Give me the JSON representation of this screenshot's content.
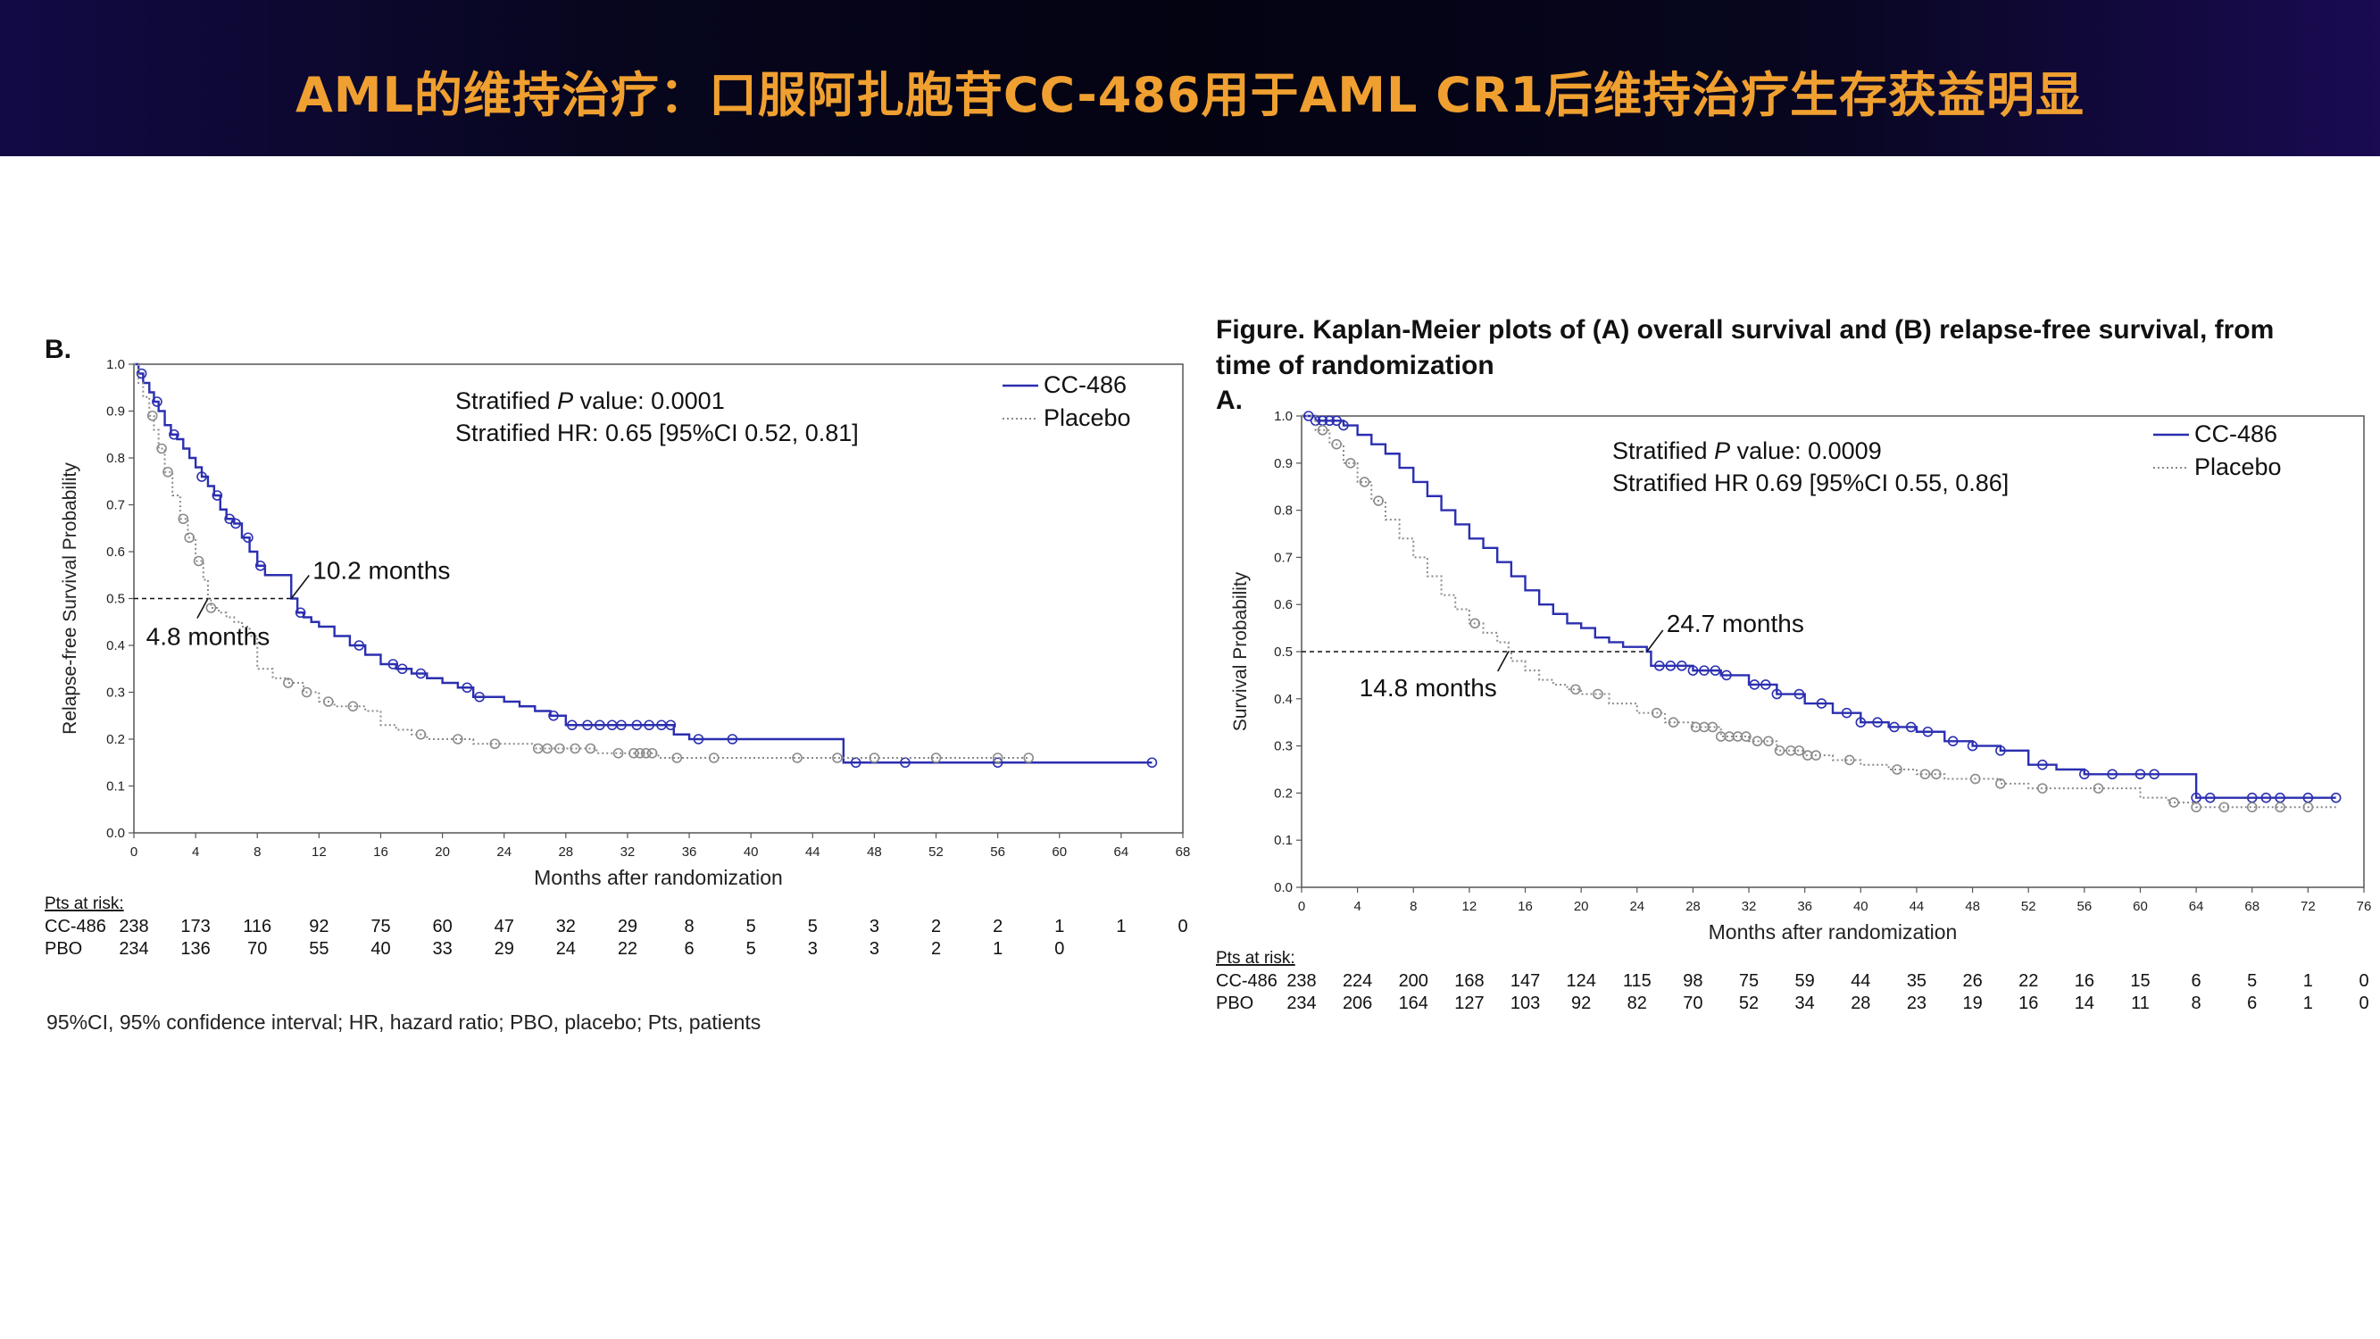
{
  "header": {
    "title": "AML的维持治疗：口服阿扎胞苷CC-486用于AML CR1后维持治疗生存获益明显"
  },
  "left_panel": {
    "label": "B."
  },
  "right_panel": {
    "caption": "Figure. Kaplan-Meier plots of (A) overall survival and (B) relapse-free survival, from time of randomization",
    "label": "A."
  },
  "footnote": "95%CI, 95% confidence interval; HR, hazard ratio; PBO, placebo; Pts, patients",
  "chart_data": [
    {
      "type": "line",
      "ylabel": "Relapse-free Survival Probability",
      "xlabel": "Months after randomization",
      "xlim": [
        0,
        68
      ],
      "ylim": [
        0,
        1
      ],
      "xticks": [
        0,
        4,
        8,
        12,
        16,
        20,
        24,
        28,
        32,
        36,
        40,
        44,
        48,
        52,
        56,
        60,
        64,
        68
      ],
      "yticks": [
        "0.0",
        "0.1",
        "0.2",
        "0.3",
        "0.4",
        "0.5",
        "0.6",
        "0.7",
        "0.8",
        "0.9",
        "1.0"
      ],
      "stats_p_prefix": "Stratified ",
      "stats_p_italic": "P",
      "stats_p_rest": " value: 0.0001",
      "stats_hr": "Stratified HR: 0.65 [95%CI 0.52, 0.81]",
      "medians": [
        {
          "label": "10.2 months",
          "x": 10.2,
          "y": 0.5
        },
        {
          "label": "4.8 months",
          "x": 4.8,
          "y": 0.5
        }
      ],
      "risk_title": "Pts at risk:",
      "risk_times": [
        0,
        4,
        8,
        12,
        16,
        20,
        24,
        28,
        32,
        36,
        40,
        44,
        48,
        52,
        56,
        60,
        64,
        68
      ],
      "series": [
        {
          "name": "CC-486",
          "color": "#2b2fb0",
          "style": "solid",
          "x": [
            0,
            0.3,
            0.6,
            1,
            1.3,
            1.6,
            2,
            2.4,
            2.8,
            3.2,
            3.6,
            4,
            4.4,
            4.8,
            5.2,
            5.6,
            6,
            6.5,
            7,
            7.5,
            8,
            8.5,
            9,
            9.5,
            10.2,
            10.6,
            11,
            11.5,
            12,
            13,
            14,
            15,
            16,
            17,
            18,
            19,
            20,
            21,
            22,
            23,
            24,
            25,
            26,
            27,
            28,
            30,
            32,
            34,
            35,
            36,
            38,
            40,
            42,
            44,
            45,
            46,
            48,
            50,
            52,
            54,
            56,
            58,
            60,
            62,
            64,
            66
          ],
          "y": [
            1,
            0.98,
            0.96,
            0.94,
            0.92,
            0.9,
            0.87,
            0.85,
            0.84,
            0.82,
            0.8,
            0.78,
            0.76,
            0.74,
            0.72,
            0.69,
            0.67,
            0.66,
            0.63,
            0.6,
            0.57,
            0.55,
            0.55,
            0.55,
            0.5,
            0.47,
            0.46,
            0.45,
            0.44,
            0.42,
            0.4,
            0.38,
            0.36,
            0.35,
            0.34,
            0.33,
            0.32,
            0.31,
            0.29,
            0.29,
            0.28,
            0.27,
            0.26,
            0.25,
            0.23,
            0.23,
            0.23,
            0.23,
            0.21,
            0.2,
            0.2,
            0.2,
            0.2,
            0.2,
            0.2,
            0.15,
            0.15,
            0.15,
            0.15,
            0.15,
            0.15,
            0.15,
            0.15,
            0.15,
            0.15,
            0.15
          ],
          "censor_x": [
            0.5,
            1.5,
            2.6,
            4.4,
            5.4,
            6.2,
            6.6,
            7.4,
            8.2,
            10.8,
            14.6,
            16.8,
            17.4,
            18.6,
            21.6,
            22.4,
            27.2,
            28.4,
            29.4,
            30.2,
            31,
            31.6,
            32.6,
            33.4,
            34.2,
            34.8,
            36.6,
            38.8,
            46.8,
            50,
            56,
            66
          ]
        },
        {
          "name": "Placebo",
          "color": "#8a8a8a",
          "style": "dotted",
          "x": [
            0,
            0.3,
            0.6,
            1,
            1.3,
            1.6,
            2,
            2.5,
            3,
            3.5,
            4,
            4.5,
            4.8,
            5,
            5.5,
            6,
            6.5,
            7,
            7.5,
            8,
            9,
            10,
            11,
            12,
            13,
            14,
            15,
            16,
            17,
            18,
            19,
            20,
            22,
            24,
            26,
            28,
            30,
            32,
            34,
            36,
            40,
            45,
            50,
            55,
            58
          ],
          "y": [
            1,
            0.96,
            0.93,
            0.89,
            0.86,
            0.82,
            0.77,
            0.72,
            0.67,
            0.63,
            0.58,
            0.54,
            0.5,
            0.48,
            0.47,
            0.46,
            0.45,
            0.44,
            0.42,
            0.35,
            0.33,
            0.32,
            0.3,
            0.28,
            0.27,
            0.27,
            0.26,
            0.23,
            0.22,
            0.21,
            0.2,
            0.2,
            0.19,
            0.19,
            0.18,
            0.18,
            0.17,
            0.17,
            0.16,
            0.16,
            0.16,
            0.16,
            0.16,
            0.16,
            0.16
          ],
          "censor_x": [
            1.2,
            1.8,
            2.2,
            3.2,
            3.6,
            4.2,
            5,
            10,
            11.2,
            12.6,
            14.2,
            18.6,
            21,
            23.4,
            26.2,
            26.8,
            27.6,
            28.6,
            29.6,
            31.4,
            32.4,
            32.8,
            33.2,
            33.6,
            35.2,
            37.6,
            43,
            45.6,
            48,
            52,
            56,
            58
          ]
        }
      ],
      "risk_rows": [
        {
          "label": "CC-486",
          "values": [
            "238",
            "173",
            "116",
            "92",
            "75",
            "60",
            "47",
            "32",
            "29",
            "8",
            "5",
            "5",
            "3",
            "2",
            "2",
            "1",
            "1",
            "0"
          ]
        },
        {
          "label": "PBO",
          "values": [
            "234",
            "136",
            "70",
            "55",
            "40",
            "33",
            "29",
            "24",
            "22",
            "6",
            "5",
            "3",
            "3",
            "2",
            "1",
            "0",
            "",
            ""
          ]
        }
      ]
    },
    {
      "type": "line",
      "ylabel": "Survival Probability",
      "xlabel": "Months after randomization",
      "xlim": [
        0,
        76
      ],
      "ylim": [
        0,
        1
      ],
      "xticks": [
        0,
        4,
        8,
        12,
        16,
        20,
        24,
        28,
        32,
        36,
        40,
        44,
        48,
        52,
        56,
        60,
        64,
        68,
        72,
        76
      ],
      "yticks": [
        "0.0",
        "0.1",
        "0.2",
        "0.3",
        "0.4",
        "0.5",
        "0.6",
        "0.7",
        "0.8",
        "0.9",
        "1.0"
      ],
      "stats_p_prefix": "Stratified ",
      "stats_p_italic": "P",
      "stats_p_rest": " value: 0.0009",
      "stats_hr": "Stratified HR 0.69 [95%CI 0.55, 0.86]",
      "medians": [
        {
          "label": "24.7 months",
          "x": 24.7,
          "y": 0.5
        },
        {
          "label": "14.8 months",
          "x": 14.8,
          "y": 0.5
        }
      ],
      "risk_title": "Pts at risk:",
      "risk_times": [
        0,
        4,
        8,
        12,
        16,
        20,
        24,
        28,
        32,
        36,
        40,
        44,
        48,
        52,
        56,
        60,
        64,
        68,
        72,
        76
      ],
      "series": [
        {
          "name": "CC-486",
          "color": "#2b2fb0",
          "style": "solid",
          "x": [
            0,
            1,
            2,
            3,
            4,
            5,
            6,
            7,
            8,
            9,
            10,
            11,
            12,
            13,
            14,
            15,
            16,
            17,
            18,
            19,
            20,
            21,
            22,
            23,
            24,
            24.7,
            25,
            26,
            28,
            30,
            32,
            34,
            36,
            38,
            40,
            42,
            44,
            46,
            48,
            50,
            52,
            54,
            56,
            58,
            60,
            62,
            63,
            64,
            66,
            68,
            70,
            72,
            74
          ],
          "y": [
            1,
            0.99,
            0.99,
            0.98,
            0.96,
            0.94,
            0.92,
            0.89,
            0.86,
            0.83,
            0.8,
            0.77,
            0.74,
            0.72,
            0.69,
            0.66,
            0.63,
            0.6,
            0.58,
            0.56,
            0.55,
            0.53,
            0.52,
            0.51,
            0.51,
            0.5,
            0.47,
            0.47,
            0.46,
            0.45,
            0.43,
            0.41,
            0.39,
            0.37,
            0.35,
            0.34,
            0.33,
            0.31,
            0.3,
            0.29,
            0.26,
            0.25,
            0.24,
            0.24,
            0.24,
            0.24,
            0.24,
            0.19,
            0.19,
            0.19,
            0.19,
            0.19,
            0.19
          ],
          "censor_x": [
            0.5,
            1,
            1.5,
            2,
            2.5,
            3,
            25.6,
            26.4,
            27.2,
            28,
            28.8,
            29.6,
            30.4,
            32.4,
            33.2,
            34,
            35.6,
            37.2,
            39,
            40,
            41.2,
            42.4,
            43.6,
            44.8,
            46.6,
            48,
            50,
            53,
            56,
            58,
            60,
            61,
            64,
            65,
            68,
            69,
            70,
            72,
            74
          ]
        },
        {
          "name": "Placebo",
          "color": "#8a8a8a",
          "style": "dotted",
          "x": [
            0,
            1,
            2,
            3,
            4,
            5,
            6,
            7,
            8,
            9,
            10,
            11,
            12,
            13,
            14,
            14.8,
            15,
            16,
            17,
            18,
            19,
            20,
            22,
            24,
            26,
            28,
            30,
            32,
            34,
            36,
            38,
            40,
            42,
            44,
            46,
            48,
            50,
            52,
            56,
            60,
            62,
            64,
            66,
            68,
            72,
            74
          ],
          "y": [
            1,
            0.97,
            0.94,
            0.9,
            0.86,
            0.82,
            0.78,
            0.74,
            0.7,
            0.66,
            0.62,
            0.59,
            0.56,
            0.54,
            0.52,
            0.5,
            0.48,
            0.46,
            0.44,
            0.43,
            0.42,
            0.41,
            0.39,
            0.37,
            0.35,
            0.34,
            0.32,
            0.31,
            0.29,
            0.28,
            0.27,
            0.26,
            0.25,
            0.24,
            0.23,
            0.23,
            0.22,
            0.21,
            0.21,
            0.19,
            0.18,
            0.17,
            0.17,
            0.17,
            0.17,
            0.17
          ],
          "censor_x": [
            1.5,
            2.5,
            3.5,
            4.5,
            5.5,
            12.4,
            19.6,
            21.2,
            25.4,
            26.6,
            28.2,
            28.8,
            29.4,
            30,
            30.6,
            31.2,
            31.8,
            32.6,
            33.4,
            34.2,
            35,
            35.6,
            36.2,
            36.8,
            39.2,
            42.6,
            44.6,
            45.4,
            48.2,
            50,
            53,
            57,
            62.4,
            64,
            66,
            68,
            70,
            72
          ]
        }
      ],
      "risk_rows": [
        {
          "label": "CC-486",
          "values": [
            "238",
            "224",
            "200",
            "168",
            "147",
            "124",
            "115",
            "98",
            "75",
            "59",
            "44",
            "35",
            "26",
            "22",
            "16",
            "15",
            "6",
            "5",
            "1",
            "0"
          ]
        },
        {
          "label": "PBO",
          "values": [
            "234",
            "206",
            "164",
            "127",
            "103",
            "92",
            "82",
            "70",
            "52",
            "34",
            "28",
            "23",
            "19",
            "16",
            "14",
            "11",
            "8",
            "6",
            "1",
            "0"
          ]
        }
      ]
    }
  ]
}
